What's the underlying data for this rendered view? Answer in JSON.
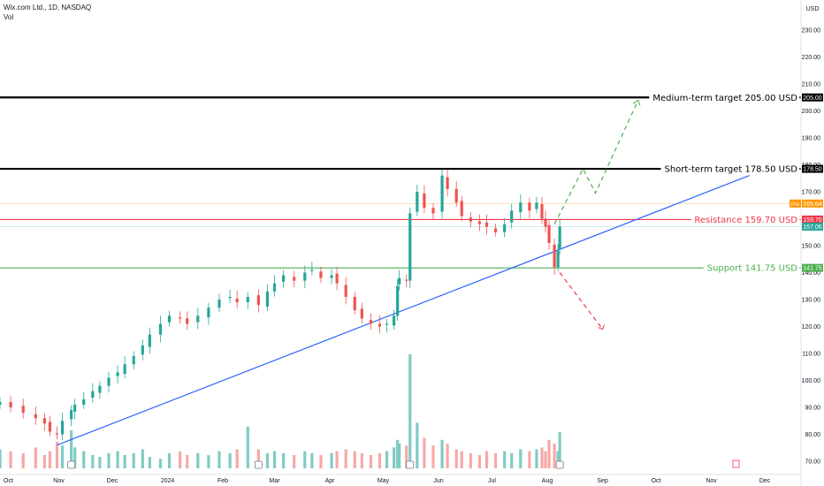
{
  "header": {
    "symbol_line": "Wix.com Ltd., 1D, NASDAQ",
    "volume_label": "Vol"
  },
  "currency": "USD",
  "colors": {
    "up": "#26a69a",
    "down": "#ef5350",
    "vol_up": "#80cbc4",
    "vol_down": "#f7a9a7",
    "trend": "#2962ff",
    "medium_target": "#000000",
    "short_target": "#000000",
    "resistance": "#f23645",
    "support": "#4caf50",
    "up_path": "#4caf50",
    "down_path": "#f23645",
    "prev_close": "#ff9800"
  },
  "chart_data": {
    "type": "candlestick",
    "y_ticks": [
      70,
      80,
      90,
      100,
      110,
      120,
      130,
      140,
      150,
      160,
      170,
      180,
      190,
      200,
      210,
      220,
      230
    ],
    "x_ticks": [
      "Oct",
      "Nov",
      "Dec",
      "2024",
      "Feb",
      "Mar",
      "Apr",
      "May",
      "Jun",
      "Jul",
      "Aug",
      "Sep",
      "Oct",
      "Nov",
      "Dec"
    ],
    "levels": [
      {
        "name": "medium-target",
        "label": "Medium-term target 205.00 USD",
        "value": 205.0,
        "tag": "205.00",
        "color_key": "medium_target",
        "width": 2.2
      },
      {
        "name": "short-target",
        "label": "Short-term target 178.50 USD",
        "value": 178.5,
        "tag": "178.50",
        "color_key": "short_target",
        "width": 2.2
      },
      {
        "name": "resistance",
        "label": "Resistance 159.70 USD",
        "value": 159.7,
        "tag": "159.70",
        "color_key": "resistance",
        "width": 1.2
      },
      {
        "name": "support",
        "label": "Support 141.75 USD",
        "value": 141.75,
        "tag": "141.75",
        "color_key": "support",
        "width": 1.2
      }
    ],
    "price_tags": [
      {
        "name": "last-price",
        "prefix": "",
        "value": "157.06",
        "y": 157.06,
        "color": "#26a69a"
      },
      {
        "name": "prev-close",
        "prefix": "Pre",
        "value": "165.64",
        "y": 165.64,
        "color": "#ff9800"
      }
    ],
    "trend_line": {
      "from": [
        "2023-10-31",
        76
      ],
      "to": [
        "2024-11-30",
        178
      ]
    },
    "projection_up": [
      [
        "2024-08-05",
        158
      ],
      [
        "2024-08-21",
        178.5
      ],
      [
        "2024-08-28",
        169.5
      ],
      [
        "2024-09-21",
        204
      ]
    ],
    "projection_down": [
      [
        "2024-08-08",
        140
      ],
      [
        "2024-09-01",
        119
      ]
    ],
    "closes": [
      [
        "2023-09-29",
        92
      ],
      [
        "2023-10-05",
        90
      ],
      [
        "2023-10-12",
        88
      ],
      [
        "2023-10-19",
        86
      ],
      [
        "2023-10-24",
        84
      ],
      [
        "2023-10-27",
        81
      ],
      [
        "2023-10-31",
        80
      ],
      [
        "2023-11-03",
        85
      ],
      [
        "2023-11-08",
        89
      ],
      [
        "2023-11-10",
        91
      ],
      [
        "2023-11-15",
        93
      ],
      [
        "2023-11-20",
        96
      ],
      [
        "2023-11-24",
        98
      ],
      [
        "2023-11-29",
        101
      ],
      [
        "2023-12-04",
        103
      ],
      [
        "2023-12-08",
        106
      ],
      [
        "2023-12-13",
        109
      ],
      [
        "2023-12-18",
        113
      ],
      [
        "2023-12-22",
        117
      ],
      [
        "2023-12-28",
        121
      ],
      [
        "2024-01-02",
        124
      ],
      [
        "2024-01-08",
        123
      ],
      [
        "2024-01-12",
        121
      ],
      [
        "2024-01-18",
        124
      ],
      [
        "2024-01-24",
        127
      ],
      [
        "2024-01-30",
        130
      ],
      [
        "2024-02-05",
        131
      ],
      [
        "2024-02-09",
        129
      ],
      [
        "2024-02-15",
        131
      ],
      [
        "2024-02-21",
        128
      ],
      [
        "2024-02-26",
        133
      ],
      [
        "2024-03-01",
        136
      ],
      [
        "2024-03-06",
        139
      ],
      [
        "2024-03-12",
        137
      ],
      [
        "2024-03-18",
        140
      ],
      [
        "2024-03-22",
        141
      ],
      [
        "2024-03-27",
        138
      ],
      [
        "2024-04-02",
        139
      ],
      [
        "2024-04-05",
        136
      ],
      [
        "2024-04-10",
        131
      ],
      [
        "2024-04-15",
        126
      ],
      [
        "2024-04-19",
        123
      ],
      [
        "2024-04-24",
        121
      ],
      [
        "2024-04-29",
        120
      ],
      [
        "2024-05-03",
        121
      ],
      [
        "2024-05-07",
        124
      ],
      [
        "2024-05-09",
        135
      ],
      [
        "2024-05-10",
        138
      ],
      [
        "2024-05-14",
        137
      ],
      [
        "2024-05-16",
        162
      ],
      [
        "2024-05-20",
        170
      ],
      [
        "2024-05-24",
        164
      ],
      [
        "2024-05-29",
        162
      ],
      [
        "2024-06-03",
        176
      ],
      [
        "2024-06-06",
        171
      ],
      [
        "2024-06-11",
        166
      ],
      [
        "2024-06-14",
        161
      ],
      [
        "2024-06-19",
        159
      ],
      [
        "2024-06-24",
        158
      ],
      [
        "2024-06-28",
        157
      ],
      [
        "2024-07-03",
        155
      ],
      [
        "2024-07-08",
        158
      ],
      [
        "2024-07-12",
        163
      ],
      [
        "2024-07-17",
        166
      ],
      [
        "2024-07-22",
        163
      ],
      [
        "2024-07-26",
        166
      ],
      [
        "2024-07-29",
        160
      ],
      [
        "2024-07-31",
        157
      ],
      [
        "2024-08-02",
        151
      ],
      [
        "2024-08-05",
        142
      ],
      [
        "2024-08-07",
        148
      ],
      [
        "2024-08-08",
        157.06
      ]
    ],
    "volumes": [
      [
        "2023-09-29",
        1.0
      ],
      [
        "2023-10-05",
        0.9
      ],
      [
        "2023-10-12",
        0.8
      ],
      [
        "2023-10-19",
        1.1
      ],
      [
        "2023-10-24",
        0.7
      ],
      [
        "2023-10-27",
        0.9
      ],
      [
        "2023-10-31",
        1.4
      ],
      [
        "2023-11-03",
        1.2
      ],
      [
        "2023-11-08",
        2.0
      ],
      [
        "2023-11-10",
        1.1
      ],
      [
        "2023-11-15",
        0.9
      ],
      [
        "2023-11-20",
        0.7
      ],
      [
        "2023-11-24",
        0.6
      ],
      [
        "2023-11-29",
        0.8
      ],
      [
        "2023-12-04",
        0.9
      ],
      [
        "2023-12-08",
        0.7
      ],
      [
        "2023-12-13",
        0.8
      ],
      [
        "2023-12-18",
        1.0
      ],
      [
        "2023-12-22",
        0.6
      ],
      [
        "2023-12-28",
        0.5
      ],
      [
        "2024-01-02",
        0.8
      ],
      [
        "2024-01-08",
        0.9
      ],
      [
        "2024-01-12",
        0.7
      ],
      [
        "2024-01-18",
        0.8
      ],
      [
        "2024-01-24",
        0.7
      ],
      [
        "2024-01-30",
        0.9
      ],
      [
        "2024-02-05",
        0.8
      ],
      [
        "2024-02-09",
        1.0
      ],
      [
        "2024-02-15",
        2.2
      ],
      [
        "2024-02-21",
        1.0
      ],
      [
        "2024-02-26",
        0.8
      ],
      [
        "2024-03-01",
        0.9
      ],
      [
        "2024-03-06",
        0.8
      ],
      [
        "2024-03-12",
        0.7
      ],
      [
        "2024-03-18",
        0.9
      ],
      [
        "2024-03-22",
        0.8
      ],
      [
        "2024-03-27",
        0.7
      ],
      [
        "2024-04-02",
        0.8
      ],
      [
        "2024-04-05",
        0.9
      ],
      [
        "2024-04-10",
        1.0
      ],
      [
        "2024-04-15",
        0.9
      ],
      [
        "2024-04-19",
        0.8
      ],
      [
        "2024-04-24",
        0.7
      ],
      [
        "2024-04-29",
        0.8
      ],
      [
        "2024-05-03",
        0.9
      ],
      [
        "2024-05-07",
        1.1
      ],
      [
        "2024-05-09",
        1.5
      ],
      [
        "2024-05-10",
        1.3
      ],
      [
        "2024-05-14",
        1.2
      ],
      [
        "2024-05-16",
        6.0
      ],
      [
        "2024-05-20",
        2.4
      ],
      [
        "2024-05-24",
        1.6
      ],
      [
        "2024-05-29",
        1.2
      ],
      [
        "2024-06-03",
        1.5
      ],
      [
        "2024-06-06",
        1.3
      ],
      [
        "2024-06-11",
        1.0
      ],
      [
        "2024-06-14",
        0.9
      ],
      [
        "2024-06-19",
        0.8
      ],
      [
        "2024-06-24",
        0.7
      ],
      [
        "2024-06-28",
        0.9
      ],
      [
        "2024-07-03",
        0.8
      ],
      [
        "2024-07-08",
        0.9
      ],
      [
        "2024-07-12",
        0.8
      ],
      [
        "2024-07-17",
        1.0
      ],
      [
        "2024-07-22",
        0.9
      ],
      [
        "2024-07-26",
        1.0
      ],
      [
        "2024-07-29",
        1.1
      ],
      [
        "2024-07-31",
        0.9
      ],
      [
        "2024-08-02",
        1.5
      ],
      [
        "2024-08-05",
        1.3
      ],
      [
        "2024-08-07",
        0.9
      ],
      [
        "2024-08-08",
        1.9
      ]
    ]
  }
}
